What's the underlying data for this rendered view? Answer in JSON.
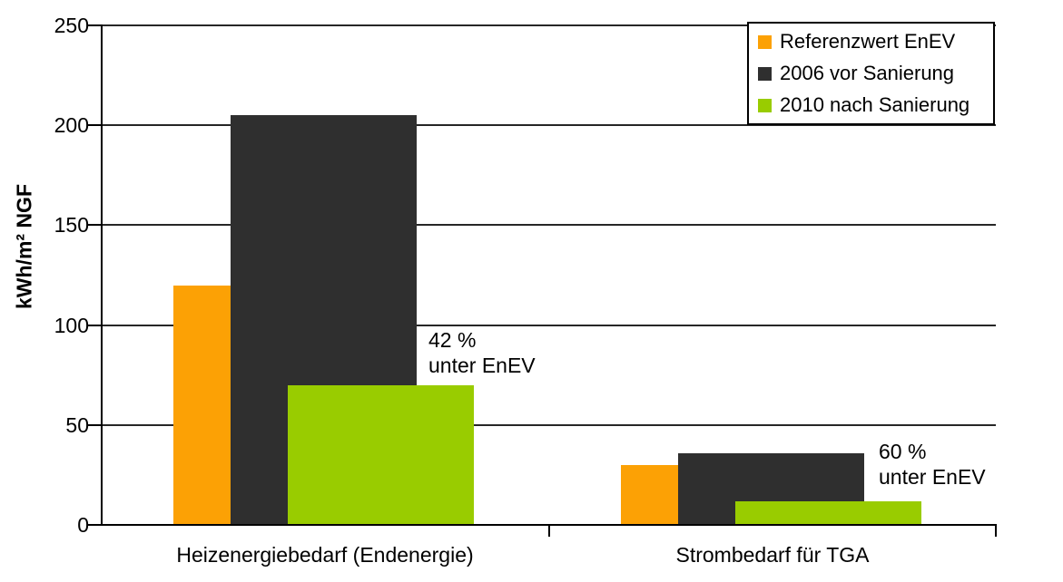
{
  "chart_data": {
    "type": "bar",
    "title": "",
    "ylabel": "kWh/m² NGF",
    "xlabel": "",
    "categories": [
      "Heizenergiebedarf (Endenergie)",
      "Strombedarf für TGA"
    ],
    "series": [
      {
        "name": "Referenzwert EnEV",
        "color": "#FCA105",
        "values": [
          120,
          30
        ]
      },
      {
        "name": "2006 vor Sanierung",
        "color": "#2F2F2F",
        "values": [
          205,
          36
        ]
      },
      {
        "name": "2010 nach Sanierung",
        "color": "#99CC00",
        "values": [
          70,
          12
        ]
      }
    ],
    "ylim": [
      0,
      250
    ],
    "yticks": [
      0,
      50,
      100,
      150,
      200,
      250
    ],
    "grid": true,
    "bar_style": "overlapping",
    "legend_position": "top-right",
    "annotations": [
      {
        "lines": [
          "42 %",
          "unter EnEV"
        ],
        "category": "Heizenergiebedarf (Endenergie)"
      },
      {
        "lines": [
          "60 %",
          "unter EnEV"
        ],
        "category": "Strombedarf für TGA"
      }
    ],
    "axis_color": "#000000",
    "gridline_color": "#262626"
  }
}
